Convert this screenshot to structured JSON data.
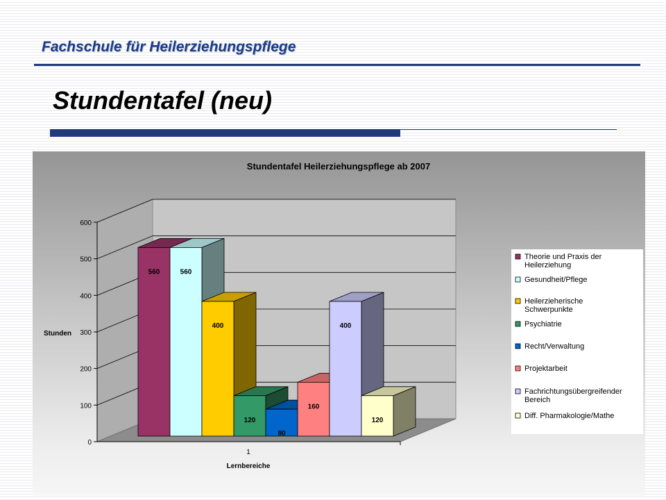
{
  "header": {
    "org_title": "Fachschule für Heilerziehungspflege",
    "slide_title": "Stundentafel (neu)"
  },
  "chart_data": {
    "type": "bar",
    "title": "Stundentafel Heilerziehungspflege ab 2007",
    "xlabel": "Lernbereiche",
    "ylabel": "Stunden",
    "categories": [
      "1"
    ],
    "ylim": [
      0,
      600
    ],
    "yticks": [
      0,
      100,
      200,
      300,
      400,
      500,
      600
    ],
    "grid": true,
    "three_d": true,
    "legend_position": "right",
    "series": [
      {
        "name": "Theorie und Praxis der Heilerziehung",
        "values": [
          560
        ],
        "color": "#993366"
      },
      {
        "name": "Gesundheit/Pflege",
        "values": [
          560
        ],
        "color": "#ccffff"
      },
      {
        "name": "Heilerzieherische Schwerpunkte",
        "values": [
          400
        ],
        "color": "#ffcc00"
      },
      {
        "name": "Psychiatrie",
        "values": [
          120
        ],
        "color": "#339966"
      },
      {
        "name": "Recht/Verwaltung",
        "values": [
          80
        ],
        "color": "#0066cc"
      },
      {
        "name": "Projektarbeit",
        "values": [
          160
        ],
        "color": "#ff8080"
      },
      {
        "name": "Fachrichtungsübergreifender Bereich",
        "values": [
          400
        ],
        "color": "#ccccff"
      },
      {
        "name": "Diff. Pharmakologie/Mathe",
        "values": [
          120
        ],
        "color": "#ffffcc"
      }
    ],
    "legend_entries": [
      [
        "Theorie und Praxis der",
        "Heilerziehung"
      ],
      [
        "Gesundheit/Pflege"
      ],
      [
        "Heilerzieherische",
        "Schwerpunkte"
      ],
      [
        "Psychiatrie"
      ],
      [
        "Recht/Verwaltung"
      ],
      [
        "Projektarbeit"
      ],
      [
        "Fachrichtungsübergreifender",
        "Bereich"
      ],
      [
        "Diff. Pharmakologie/Mathe"
      ]
    ]
  }
}
